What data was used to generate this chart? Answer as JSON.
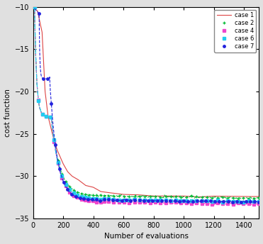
{
  "title": "",
  "xlabel": "Number of evaluations",
  "ylabel": "cost function",
  "xlim": [
    0,
    1500
  ],
  "ylim": [
    -35,
    -10
  ],
  "yticks": [
    -35,
    -30,
    -25,
    -20,
    -15,
    -10
  ],
  "xticks": [
    0,
    200,
    400,
    600,
    800,
    1000,
    1200,
    1400
  ],
  "cases": {
    "case 1": {
      "color": "#dd4444",
      "linestyle": "-",
      "marker": null,
      "markersize": 0,
      "linewidth": 0.8
    },
    "case 2": {
      "color": "#00bb33",
      "linestyle": "--",
      "marker": "+",
      "markersize": 3.5,
      "linewidth": 0.8
    },
    "case 4": {
      "color": "#ee44cc",
      "linestyle": "--",
      "marker": "s",
      "markersize": 2.5,
      "linewidth": 0.8
    },
    "case 6": {
      "color": "#22ccee",
      "linestyle": "-.",
      "marker": "s",
      "markersize": 2.5,
      "linewidth": 0.8
    },
    "case 7": {
      "color": "#2222dd",
      "linestyle": "--",
      "marker": "o",
      "markersize": 2.5,
      "linewidth": 0.8
    }
  },
  "bg_color": "#ffffff",
  "fig_bg": "#e0e0e0"
}
